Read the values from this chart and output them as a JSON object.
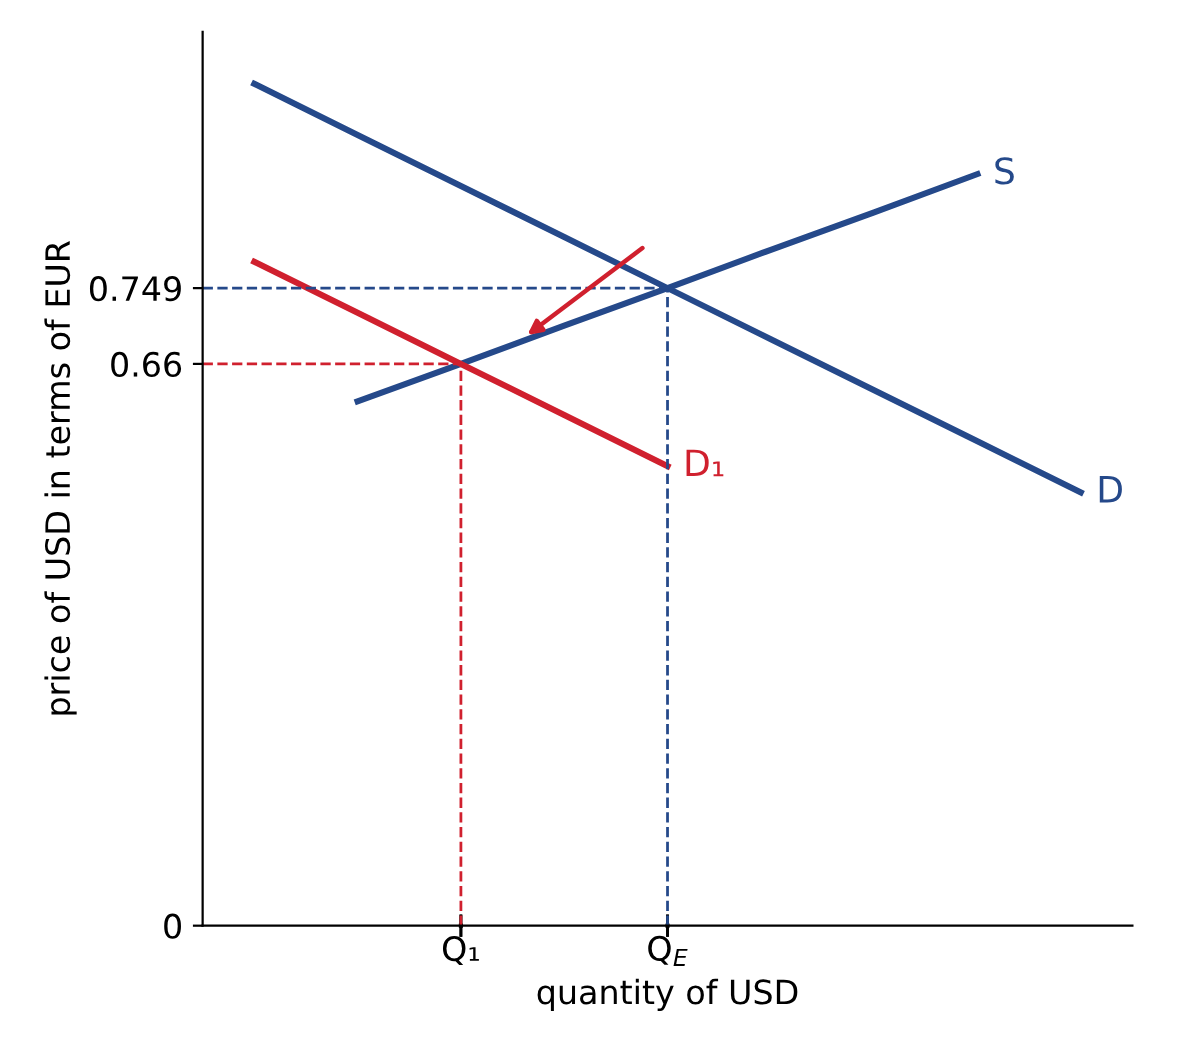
{
  "chart_data": {
    "type": "line",
    "xlabel": "quantity of USD",
    "ylabel": "price of USD in terms of EUR",
    "categories": [
      null,
      null,
      "Q₁",
      null,
      "Q$_{E}$",
      null,
      null,
      null,
      null
    ],
    "series": [
      {
        "name": "S",
        "color": "#25498a",
        "values": [
          null,
          0.616,
          0.66,
          0.705,
          0.749,
          0.794,
          0.838,
          0.883,
          null
        ]
      },
      {
        "name": "D",
        "color": "#25498a",
        "values": [
          0.989,
          0.929,
          0.869,
          0.809,
          0.749,
          0.689,
          0.629,
          0.569,
          0.509
        ]
      },
      {
        "name": "D₁",
        "color": "#d0202e",
        "values": [
          0.78,
          0.72,
          0.66,
          0.6,
          0.54,
          null,
          null,
          null,
          null
        ]
      }
    ],
    "ylim": [
      0,
      1.05
    ],
    "yticks": [
      0,
      0.66,
      0.749
    ],
    "ref_lines": [
      {
        "axis": "y",
        "value": 0.749,
        "color": "#25498a",
        "line_style": "dashed"
      },
      {
        "axis": "x",
        "value": "Q$_{E}$",
        "color": "#25498a",
        "line_style": "dashed"
      },
      {
        "axis": "y",
        "value": 0.66,
        "color": "#d0202e",
        "line_style": "dashed"
      },
      {
        "axis": "x",
        "value": "Q₁",
        "color": "#d0202e",
        "line_style": "dashed"
      }
    ],
    "grid": false,
    "legend": false,
    "marker": "none",
    "line_style": "solid"
  }
}
